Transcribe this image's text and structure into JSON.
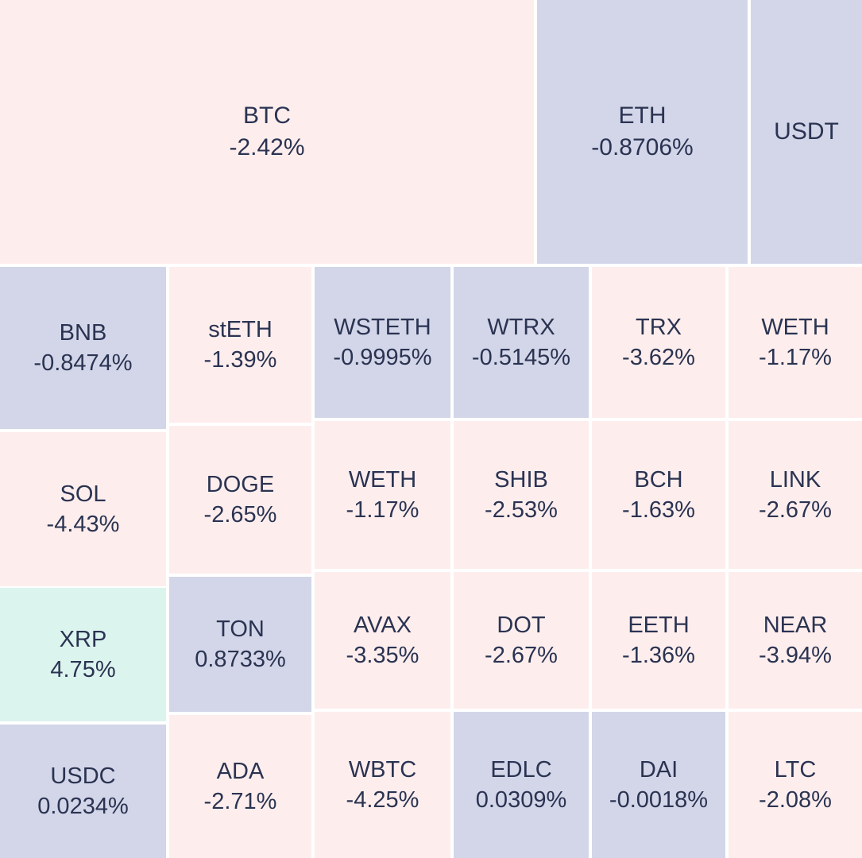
{
  "colors": {
    "negative": "#fdeeed",
    "neutral": "#d2d6e8",
    "positive": "#dcf4ee",
    "text": "#2b3352",
    "gap": "#ffffff"
  },
  "chart_data": {
    "type": "treemap",
    "tiles": [
      {
        "symbol": "BTC",
        "change": "-2.42%",
        "value": -2.42,
        "color_class": "negative"
      },
      {
        "symbol": "ETH",
        "change": "-0.8706%",
        "value": -0.8706,
        "color_class": "neutral"
      },
      {
        "symbol": "USDT",
        "change": "",
        "value": null,
        "color_class": "neutral"
      },
      {
        "symbol": "BNB",
        "change": "-0.8474%",
        "value": -0.8474,
        "color_class": "neutral"
      },
      {
        "symbol": "stETH",
        "change": "-1.39%",
        "value": -1.39,
        "color_class": "negative"
      },
      {
        "symbol": "WSTETH",
        "change": "-0.9995%",
        "value": -0.9995,
        "color_class": "neutral"
      },
      {
        "symbol": "WTRX",
        "change": "-0.5145%",
        "value": -0.5145,
        "color_class": "neutral"
      },
      {
        "symbol": "TRX",
        "change": "-3.62%",
        "value": -3.62,
        "color_class": "negative"
      },
      {
        "symbol": "WETH",
        "change": "-1.17%",
        "value": -1.17,
        "color_class": "negative"
      },
      {
        "symbol": "SOL",
        "change": "-4.43%",
        "value": -4.43,
        "color_class": "negative"
      },
      {
        "symbol": "DOGE",
        "change": "-2.65%",
        "value": -2.65,
        "color_class": "negative"
      },
      {
        "symbol": "WETH",
        "change": "-1.17%",
        "value": -1.17,
        "color_class": "negative"
      },
      {
        "symbol": "SHIB",
        "change": "-2.53%",
        "value": -2.53,
        "color_class": "negative"
      },
      {
        "symbol": "BCH",
        "change": "-1.63%",
        "value": -1.63,
        "color_class": "negative"
      },
      {
        "symbol": "LINK",
        "change": "-2.67%",
        "value": -2.67,
        "color_class": "negative"
      },
      {
        "symbol": "XRP",
        "change": "4.75%",
        "value": 4.75,
        "color_class": "positive"
      },
      {
        "symbol": "TON",
        "change": "0.8733%",
        "value": 0.8733,
        "color_class": "neutral"
      },
      {
        "symbol": "AVAX",
        "change": "-3.35%",
        "value": -3.35,
        "color_class": "negative"
      },
      {
        "symbol": "DOT",
        "change": "-2.67%",
        "value": -2.67,
        "color_class": "negative"
      },
      {
        "symbol": "EETH",
        "change": "-1.36%",
        "value": -1.36,
        "color_class": "negative"
      },
      {
        "symbol": "NEAR",
        "change": "-3.94%",
        "value": -3.94,
        "color_class": "negative"
      },
      {
        "symbol": "USDC",
        "change": "0.0234%",
        "value": 0.0234,
        "color_class": "neutral"
      },
      {
        "symbol": "ADA",
        "change": "-2.71%",
        "value": -2.71,
        "color_class": "negative"
      },
      {
        "symbol": "WBTC",
        "change": "-4.25%",
        "value": -4.25,
        "color_class": "negative"
      },
      {
        "symbol": "EDLC",
        "change": "0.0309%",
        "value": 0.0309,
        "color_class": "neutral"
      },
      {
        "symbol": "DAI",
        "change": "-0.0018%",
        "value": -0.0018,
        "color_class": "neutral"
      },
      {
        "symbol": "LTC",
        "change": "-2.08%",
        "value": -2.08,
        "color_class": "negative"
      }
    ]
  }
}
